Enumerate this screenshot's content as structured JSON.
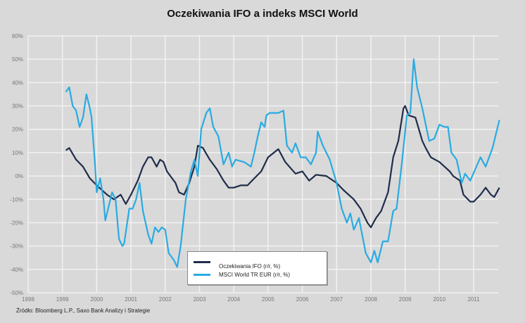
{
  "chart_data": {
    "type": "line",
    "title": "Oczekiwania IFO a indeks MSCI World",
    "xlabel": "",
    "ylabel": "",
    "xlim": [
      1998,
      2011.75
    ],
    "ylim": [
      -50,
      60
    ],
    "x_ticks": [
      "1998",
      "1999",
      "2000",
      "2001",
      "2002",
      "2003",
      "2004",
      "2005",
      "2006",
      "2007",
      "2008",
      "2009",
      "2010",
      "2011"
    ],
    "y_ticks": [
      "60%",
      "50%",
      "40%",
      "30%",
      "20%",
      "10%",
      "0%",
      "-10%",
      "-20%",
      "-30%",
      "-40%",
      "-50%"
    ],
    "grid": true,
    "legend_position": "bottom-center",
    "series": [
      {
        "name": "Oczekiwania IFO (r/r, %)",
        "color": "#1f2d4a",
        "x": [
          1999.1,
          1999.2,
          1999.4,
          1999.6,
          1999.8,
          2000.0,
          2000.3,
          2000.5,
          2000.7,
          2000.85,
          2001.0,
          2001.2,
          2001.35,
          2001.5,
          2001.6,
          2001.75,
          2001.85,
          2001.95,
          2002.05,
          2002.3,
          2002.4,
          2002.55,
          2002.7,
          2002.85,
          2002.95,
          2003.1,
          2003.3,
          2003.5,
          2003.7,
          2003.85,
          2004.0,
          2004.2,
          2004.4,
          2004.6,
          2004.8,
          2005.0,
          2005.3,
          2005.5,
          2005.8,
          2006.0,
          2006.2,
          2006.4,
          2006.7,
          2007.0,
          2007.2,
          2007.5,
          2007.7,
          2007.9,
          2008.0,
          2008.15,
          2008.3,
          2008.5,
          2008.65,
          2008.8,
          2008.95,
          2009.0,
          2009.1,
          2009.3,
          2009.5,
          2009.6,
          2009.75,
          2010.0,
          2010.3,
          2010.4,
          2010.6,
          2010.7,
          2010.9,
          2011.0,
          2011.2,
          2011.35,
          2011.5,
          2011.6,
          2011.75
        ],
        "y": [
          11,
          12,
          7,
          4,
          -1,
          -4,
          -8,
          -10,
          -8,
          -12,
          -8,
          -2,
          4,
          8,
          8,
          4,
          7,
          6,
          2,
          -3,
          -7,
          -8,
          -3,
          4,
          13,
          12,
          7,
          3,
          -2,
          -5,
          -5,
          -4,
          -4,
          -1,
          2,
          8,
          11.5,
          6,
          1,
          2,
          -2,
          0.5,
          0,
          -3,
          -6,
          -10,
          -14,
          -20,
          -22,
          -18,
          -15,
          -7,
          8,
          15,
          29,
          30,
          26,
          25,
          15,
          12,
          8,
          6,
          2,
          0,
          -2,
          -8,
          -11,
          -11,
          -8,
          -5,
          -8,
          -9,
          -5
        ]
      },
      {
        "name": "MSCI World TR EUR (r/r, %)",
        "color": "#29abe2",
        "x": [
          1999.1,
          1999.2,
          1999.3,
          1999.4,
          1999.5,
          1999.6,
          1999.7,
          1999.8,
          1999.85,
          1999.95,
          2000.0,
          2000.1,
          2000.2,
          2000.25,
          2000.4,
          2000.45,
          2000.55,
          2000.65,
          2000.75,
          2000.8,
          2000.95,
          2001.05,
          2001.15,
          2001.25,
          2001.35,
          2001.5,
          2001.6,
          2001.7,
          2001.8,
          2001.9,
          2002.0,
          2002.1,
          2002.25,
          2002.35,
          2002.45,
          2002.6,
          2002.75,
          2002.85,
          2002.95,
          2003.05,
          2003.2,
          2003.3,
          2003.4,
          2003.55,
          2003.7,
          2003.85,
          2003.95,
          2004.05,
          2004.3,
          2004.5,
          2004.6,
          2004.7,
          2004.8,
          2004.9,
          2004.95,
          2005.05,
          2005.3,
          2005.45,
          2005.55,
          2005.7,
          2005.8,
          2005.95,
          2006.1,
          2006.25,
          2006.4,
          2006.45,
          2006.6,
          2006.8,
          2007.0,
          2007.15,
          2007.3,
          2007.4,
          2007.5,
          2007.65,
          2007.85,
          2008.0,
          2008.1,
          2008.2,
          2008.35,
          2008.5,
          2008.65,
          2008.75,
          2008.9,
          2009.05,
          2009.15,
          2009.25,
          2009.35,
          2009.5,
          2009.7,
          2009.85,
          2010.0,
          2010.15,
          2010.25,
          2010.35,
          2010.5,
          2010.65,
          2010.75,
          2010.9,
          2011.05,
          2011.2,
          2011.35,
          2011.55,
          2011.75
        ],
        "y": [
          36,
          38,
          30,
          28,
          21,
          25,
          35,
          29,
          25,
          5,
          -7,
          -1,
          -10,
          -19,
          -10,
          -7,
          -10,
          -27,
          -30,
          -29,
          -14,
          -14,
          -10,
          -3,
          -15,
          -25,
          -29,
          -22,
          -24,
          -22,
          -23,
          -33,
          -36,
          -39,
          -30,
          -10,
          2,
          7,
          0,
          20,
          27,
          29,
          21,
          17,
          5,
          10,
          4,
          7,
          6,
          4,
          10,
          17,
          23,
          21,
          26,
          27,
          27,
          28,
          13,
          10,
          14,
          8,
          8,
          5,
          10,
          19,
          13,
          7,
          -3,
          -14,
          -20,
          -16,
          -23,
          -18,
          -33,
          -37,
          -32,
          -37,
          -28,
          -28,
          -15,
          -14,
          5,
          26,
          27,
          50,
          38,
          29,
          15,
          16,
          22,
          21,
          21,
          10,
          7,
          -3,
          1,
          -2,
          3,
          8,
          4,
          12,
          24
        ]
      }
    ]
  },
  "source": "Źródło: Bloomberg L.P., Saxo Bank Analizy i Strategie"
}
